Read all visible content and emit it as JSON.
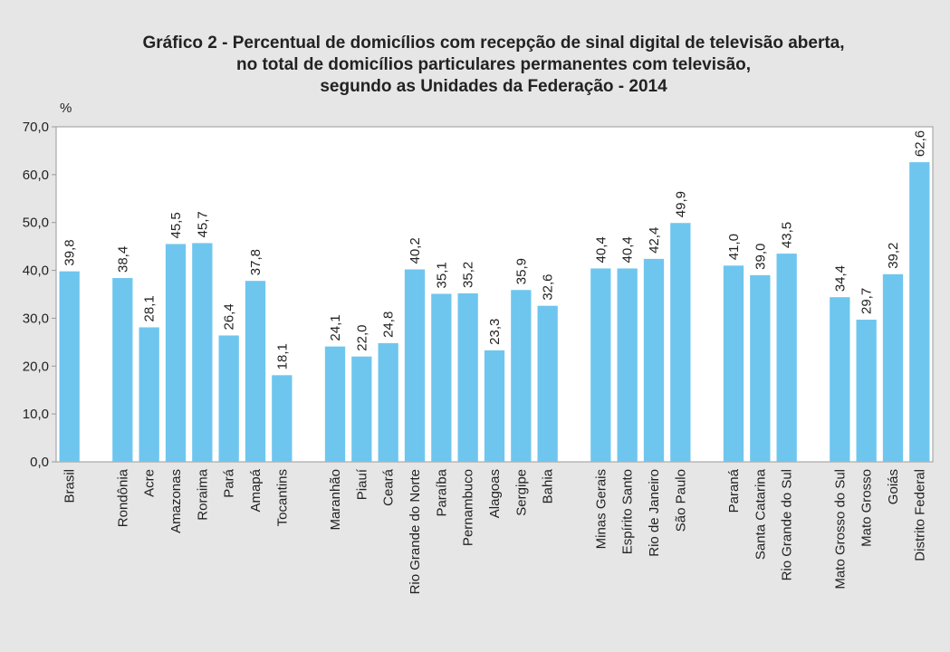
{
  "chart_data": {
    "type": "bar",
    "title": [
      "Gráfico 2 - Percentual de domicílios com recepção de sinal digital de televisão aberta,",
      "no total de domicílios particulares permanentes com televisão,",
      "segundo as Unidades da Federação - 2014"
    ],
    "y_label": "%",
    "categories": [
      "Brasil",
      null,
      "Rondônia",
      "Acre",
      "Amazonas",
      "Roraima",
      "Pará",
      "Amapá",
      "Tocantins",
      null,
      "Maranhão",
      "Piauí",
      "Ceará",
      "Rio Grande do Norte",
      "Paraíba",
      "Pernambuco",
      "Alagoas",
      "Sergipe",
      "Bahia",
      null,
      "Minas Gerais",
      "Espírito Santo",
      "Rio de Janeiro",
      "São Paulo",
      null,
      "Paraná",
      "Santa Catarina",
      "Rio Grande do Sul",
      null,
      "Mato Grosso do Sul",
      "Mato Grosso",
      "Goiás",
      "Distrito Federal"
    ],
    "values": [
      39.8,
      null,
      38.4,
      28.1,
      45.5,
      45.7,
      26.4,
      37.8,
      18.1,
      null,
      24.1,
      22.0,
      24.8,
      40.2,
      35.1,
      35.2,
      23.3,
      35.9,
      32.6,
      null,
      40.4,
      40.4,
      42.4,
      49.9,
      null,
      41.0,
      39.0,
      43.5,
      null,
      34.4,
      29.7,
      39.2,
      62.6
    ],
    "value_labels": [
      "39,8",
      null,
      "38,4",
      "28,1",
      "45,5",
      "45,7",
      "26,4",
      "37,8",
      "18,1",
      null,
      "24,1",
      "22,0",
      "24,8",
      "40,2",
      "35,1",
      "35,2",
      "23,3",
      "35,9",
      "32,6",
      null,
      "40,4",
      "40,4",
      "42,4",
      "49,9",
      null,
      "41,0",
      "39,0",
      "43,5",
      null,
      "34,4",
      "29,7",
      "39,2",
      "62,6"
    ],
    "color": "#6ec6ef",
    "ylim": [
      0,
      70
    ],
    "yticks": [
      {
        "value": 0,
        "label": "0,0"
      },
      {
        "value": 10,
        "label": "10,0"
      },
      {
        "value": 20,
        "label": "20,0"
      },
      {
        "value": 30,
        "label": "30,0"
      },
      {
        "value": 40,
        "label": "40,0"
      },
      {
        "value": 50,
        "label": "50,0"
      },
      {
        "value": 60,
        "label": "60,0"
      },
      {
        "value": 70,
        "label": "70,0"
      }
    ],
    "grid": false
  }
}
